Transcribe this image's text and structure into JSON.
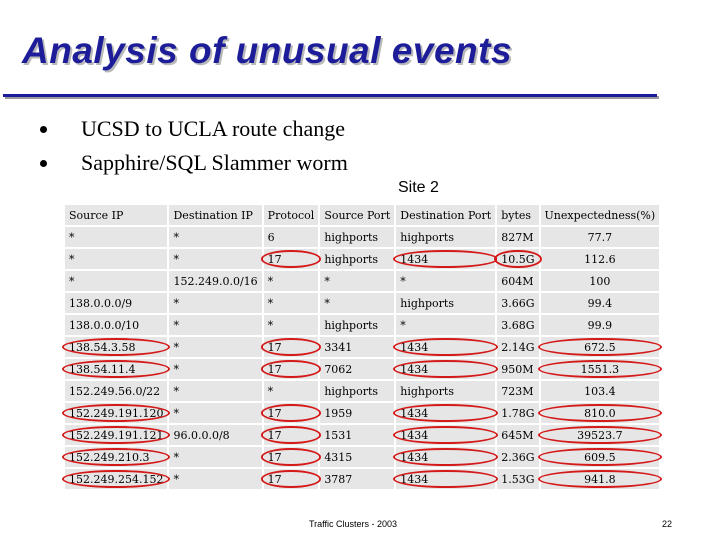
{
  "title": "Analysis of unusual events",
  "bullets": [
    "UCSD to UCLA route change",
    "Sapphire/SQL Slammer worm"
  ],
  "site_label": "Site 2",
  "table": {
    "headers": [
      "Source IP",
      "Destination IP",
      "Protocol",
      "Source Port",
      "Destination Port",
      "bytes",
      "Unexpectedness(%)"
    ],
    "rows": [
      [
        "*",
        "*",
        "6",
        "highports",
        "highports",
        "827M",
        "77.7"
      ],
      [
        "*",
        "*",
        "17",
        "highports",
        "1434",
        "10.5G",
        "112.6"
      ],
      [
        "*",
        "152.249.0.0/16",
        "*",
        "*",
        "*",
        "604M",
        "100"
      ],
      [
        "138.0.0.0/9",
        "*",
        "*",
        "*",
        "highports",
        "3.66G",
        "99.4"
      ],
      [
        "138.0.0.0/10",
        "*",
        "*",
        "highports",
        "*",
        "3.68G",
        "99.9"
      ],
      [
        "138.54.3.58",
        "*",
        "17",
        "3341",
        "1434",
        "2.14G",
        "672.5"
      ],
      [
        "138.54.11.4",
        "*",
        "17",
        "7062",
        "1434",
        "950M",
        "1551.3"
      ],
      [
        "152.249.56.0/22",
        "*",
        "*",
        "highports",
        "highports",
        "723M",
        "103.4"
      ],
      [
        "152.249.191.120",
        "*",
        "17",
        "1959",
        "1434",
        "1.78G",
        "810.0"
      ],
      [
        "152.249.191.121",
        "96.0.0.0/8",
        "17",
        "1531",
        "1434",
        "645M",
        "39523.7"
      ],
      [
        "152.249.210.3",
        "*",
        "17",
        "4315",
        "1434",
        "2.36G",
        "609.5"
      ],
      [
        "152.249.254.152",
        "*",
        "17",
        "3787",
        "1434",
        "1.53G",
        "941.8"
      ]
    ]
  },
  "highlight_color": "#d41919",
  "footer": "Traffic Clusters - 2003",
  "page_number": "22"
}
